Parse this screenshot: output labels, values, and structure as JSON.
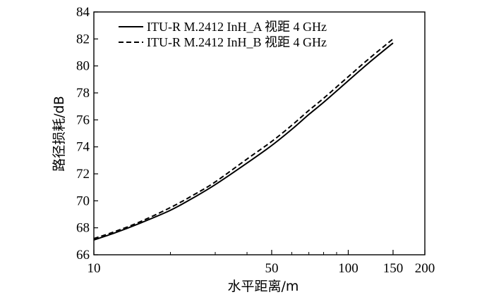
{
  "chart_data": {
    "type": "line",
    "xlabel": "水平距离/m",
    "ylabel": "路径损耗/dB",
    "xscale": "log",
    "xlim": [
      10,
      200
    ],
    "ylim": [
      66,
      84
    ],
    "x_ticks": [
      10,
      50,
      100,
      150,
      200
    ],
    "x_tick_labels": [
      "10",
      "50",
      "100",
      "150",
      "200"
    ],
    "y_ticks": [
      66,
      68,
      70,
      72,
      74,
      76,
      78,
      80,
      82,
      84
    ],
    "y_tick_labels": [
      "66",
      "68",
      "70",
      "72",
      "74",
      "76",
      "78",
      "80",
      "82",
      "84"
    ],
    "grid": false,
    "legend_position": "top-left",
    "series": [
      {
        "name": "ITU-R M.2412 InH_A 视距 4 GHz",
        "line_style": "solid",
        "x": [
          10,
          12,
          15,
          20,
          25,
          30,
          40,
          50,
          60,
          70,
          80,
          100,
          120,
          150
        ],
        "y": [
          67.1,
          67.6,
          68.3,
          69.3,
          70.3,
          71.2,
          72.8,
          74.1,
          75.3,
          76.4,
          77.3,
          78.9,
          80.2,
          81.7
        ]
      },
      {
        "name": "ITU-R M.2412 InH_B 视距 4 GHz",
        "line_style": "dashed",
        "x": [
          10,
          12,
          15,
          20,
          25,
          30,
          40,
          50,
          60,
          70,
          80,
          100,
          120,
          150
        ],
        "y": [
          67.2,
          67.7,
          68.4,
          69.5,
          70.5,
          71.4,
          73.1,
          74.4,
          75.6,
          76.7,
          77.6,
          79.2,
          80.5,
          82.0
        ]
      }
    ]
  }
}
